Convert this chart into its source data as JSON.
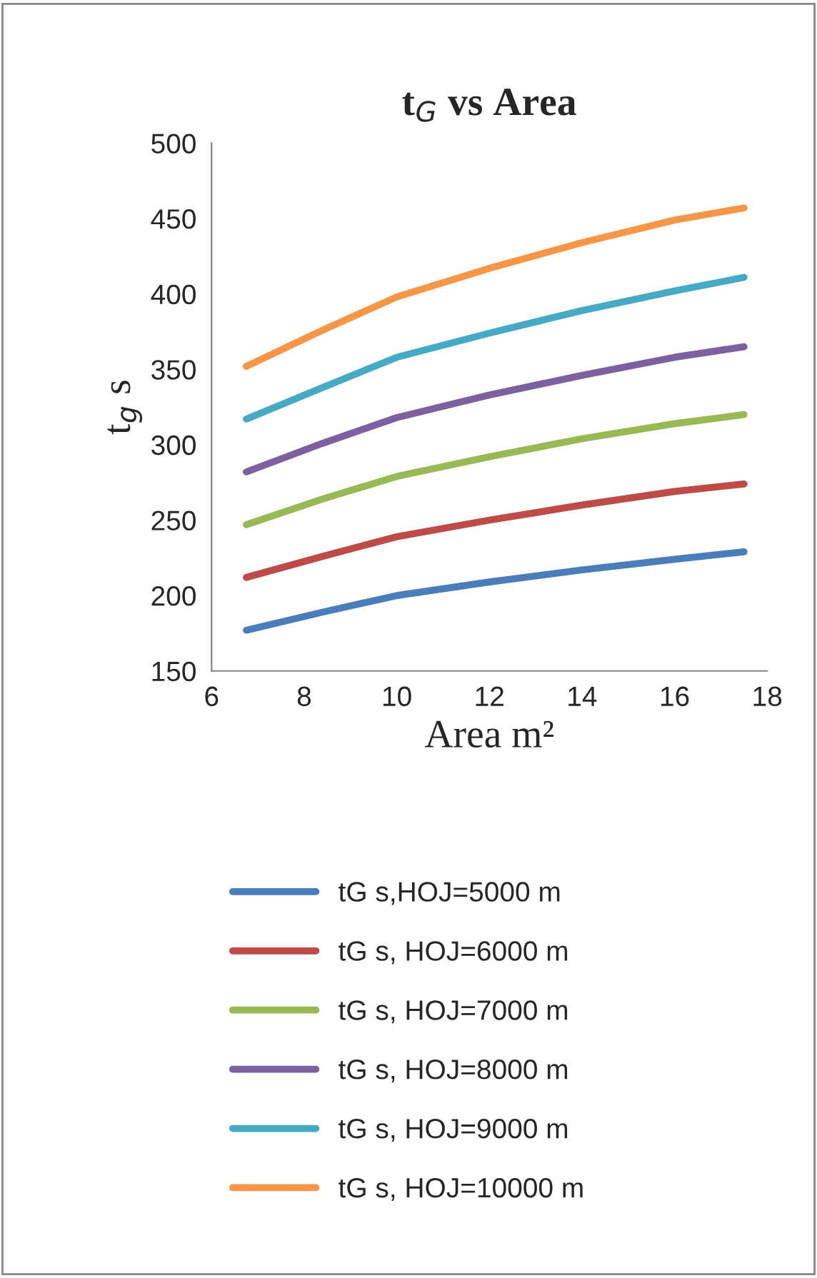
{
  "chart_data": {
    "type": "line",
    "title": "t$_{G}$ vs Area",
    "xlabel": "Area m²",
    "ylabel": "t$_{g}$ s",
    "x": [
      6.75,
      8.4,
      10,
      12,
      14,
      16,
      17.5
    ],
    "series": [
      {
        "name": "tG s,HOJ=5000 m",
        "color": "#4a7ebb",
        "values": [
          177,
          189,
          200,
          209,
          217,
          224,
          229
        ]
      },
      {
        "name": "tG s, HOJ=6000 m",
        "color": "#be4b48",
        "values": [
          212,
          226,
          239,
          250,
          260,
          269,
          274
        ]
      },
      {
        "name": "tG s, HOJ=7000 m",
        "color": "#98b954",
        "values": [
          247,
          264,
          279,
          292,
          304,
          314,
          320
        ]
      },
      {
        "name": "tG s, HOJ=8000 m",
        "color": "#7d60a0",
        "values": [
          282,
          301,
          318,
          333,
          346,
          358,
          365
        ]
      },
      {
        "name": "tG s, HOJ=9000 m",
        "color": "#46aac5",
        "values": [
          317,
          338,
          358,
          374,
          389,
          402,
          411
        ]
      },
      {
        "name": "tG s, HOJ=10000 m",
        "color": "#f79646",
        "values": [
          352,
          376,
          398,
          417,
          434,
          449,
          457
        ]
      }
    ],
    "xlim": [
      6,
      18
    ],
    "xticks": [
      6,
      8,
      10,
      12,
      14,
      16,
      18
    ],
    "ylim": [
      150,
      500
    ],
    "yticks": [
      150,
      200,
      250,
      300,
      350,
      400,
      450,
      500
    ],
    "grid": false,
    "legend": "bottom",
    "marker": "none",
    "line_style": "solid"
  }
}
